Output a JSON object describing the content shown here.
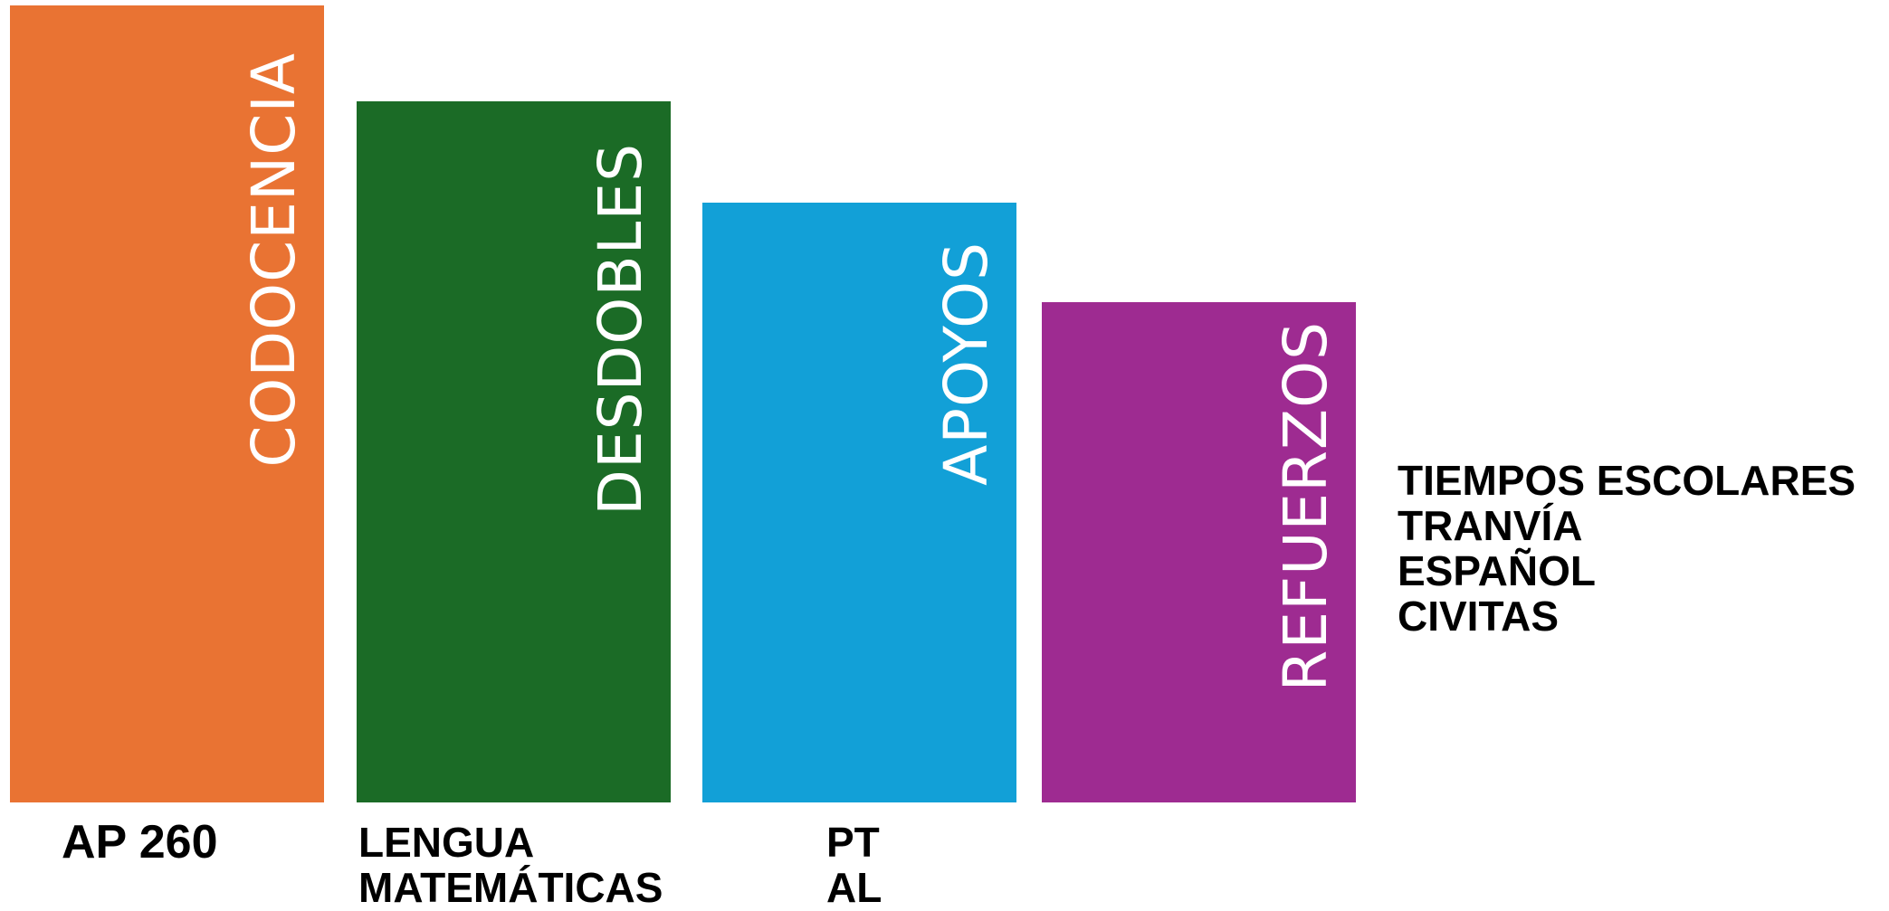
{
  "bars": [
    {
      "label": "CODOCENCIA",
      "color": "#E97333"
    },
    {
      "label": "DESDOBLES",
      "color": "#1B6B26"
    },
    {
      "label": "APOYOS",
      "color": "#12A0D7"
    },
    {
      "label": "REFUERZOS",
      "color": "#9E2B91"
    }
  ],
  "captions": {
    "codocencia": [
      "AP 260"
    ],
    "desdobles": [
      "LENGUA",
      "MATEMÁTICAS"
    ],
    "apoyos": [
      "PT",
      "AL"
    ],
    "refuerzos": [
      "TIEMPOS ESCOLARES",
      "TRANVÍA",
      "ESPAÑOL",
      "CIVITAS"
    ]
  }
}
